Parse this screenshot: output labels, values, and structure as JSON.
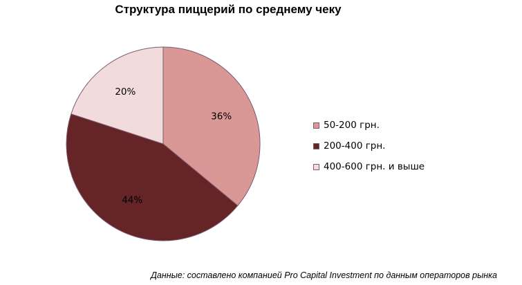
{
  "source_note": "Данные: составлено компанией Pro Capital Investment по данным операторов рынка",
  "chart_data": {
    "type": "pie",
    "title": "Структура пиццерий по среднему чеку",
    "categories": [
      "50-200 грн.",
      "200-400 грн.",
      "400-600 грн. и выше"
    ],
    "values": [
      36,
      44,
      20
    ],
    "data_labels": [
      "36%",
      "44%",
      "20%"
    ],
    "colors": [
      "#d99795",
      "#652426",
      "#f2dcdb"
    ],
    "start_angle_deg": 0,
    "direction": "clockwise",
    "legend_position": "right"
  }
}
